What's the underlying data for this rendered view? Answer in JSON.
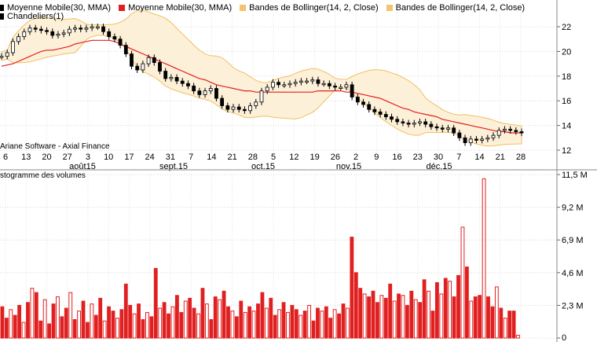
{
  "legend": [
    {
      "label": "Moyenne Mobile(30, MMA)",
      "color": "#000000",
      "partial": true
    },
    {
      "label": "Moyenne Mobile(30, MMA)",
      "color": "#e02020"
    },
    {
      "label": "Bandes de Bollinger(14, 2, Close)",
      "color": "#f2c46e"
    },
    {
      "label": "Bandes de Bollinger(14, 2, Close)",
      "color": "#f2c46e"
    },
    {
      "label": "Chandeliers(1)",
      "color": "#000000"
    }
  ],
  "credit": "Ariane Software - Axial Finance",
  "volume_title": "stogramme des volumes",
  "chart_data": [
    {
      "type": "candlestick",
      "x_day_ticks": [
        "6",
        "13",
        "20",
        "27",
        "3",
        "10",
        "17",
        "24",
        "31",
        "7",
        "14",
        "21",
        "28",
        "5",
        "12",
        "19",
        "26",
        "2",
        "9",
        "16",
        "23",
        "30",
        "7",
        "14",
        "21",
        "28"
      ],
      "x_month_ticks": [
        "août15",
        "sept.15",
        "oct.15",
        "nov.15",
        "déc.15"
      ],
      "yticks": [
        12,
        14,
        16,
        18,
        20,
        22
      ],
      "ylim": [
        11.5,
        23.0
      ],
      "close": [
        19.6,
        19.9,
        20.8,
        21.2,
        21.6,
        21.9,
        21.8,
        21.7,
        21.6,
        21.3,
        21.4,
        21.5,
        21.8,
        21.9,
        21.8,
        21.9,
        22.0,
        22.0,
        21.6,
        21.2,
        21.0,
        20.5,
        19.8,
        18.8,
        18.5,
        19.0,
        19.5,
        19.1,
        18.4,
        17.8,
        17.9,
        17.6,
        17.4,
        17.2,
        16.8,
        16.5,
        16.8,
        17.0,
        16.2,
        15.6,
        15.3,
        15.5,
        15.3,
        15.2,
        15.6,
        15.9,
        16.8,
        17.1,
        17.5,
        17.3,
        17.3,
        17.4,
        17.5,
        17.6,
        17.6,
        17.7,
        17.4,
        17.4,
        17.2,
        17.1,
        17.1,
        17.3,
        16.3,
        15.9,
        15.7,
        15.3,
        15.1,
        14.9,
        14.7,
        14.5,
        14.3,
        14.2,
        14.1,
        14.2,
        14.3,
        14.1,
        13.9,
        13.8,
        13.7,
        13.8,
        13.4,
        13.0,
        12.6,
        12.9,
        12.8,
        12.9,
        13.0,
        13.2,
        13.6,
        13.7,
        13.6,
        13.5,
        13.4
      ],
      "ma30": [
        18.8,
        18.9,
        19.0,
        19.2,
        19.4,
        19.6,
        19.8,
        20.0,
        20.1,
        20.1,
        20.2,
        20.3,
        20.4,
        20.6,
        20.7,
        20.8,
        20.9,
        20.9,
        20.9,
        20.9,
        20.8,
        20.6,
        20.4,
        20.2,
        20.0,
        19.8,
        19.6,
        19.4,
        19.2,
        19.0,
        18.8,
        18.6,
        18.4,
        18.2,
        18.0,
        17.8,
        17.7,
        17.5,
        17.3,
        17.2,
        17.1,
        17.0,
        16.9,
        16.8,
        16.8,
        16.7,
        16.7,
        16.7,
        16.7,
        16.7,
        16.7,
        16.7,
        16.7,
        16.7,
        16.7,
        16.7,
        16.8,
        16.8,
        16.8,
        16.8,
        16.8,
        16.7,
        16.7,
        16.6,
        16.5,
        16.4,
        16.3,
        16.2,
        16.0,
        15.8,
        15.6,
        15.4,
        15.3,
        15.1,
        15.0,
        14.9,
        14.8,
        14.7,
        14.5,
        14.4,
        14.3,
        14.2,
        14.1,
        14.0,
        13.9,
        13.8,
        13.7,
        13.6,
        13.5,
        13.5,
        13.4,
        13.4,
        13.4
      ]
    },
    {
      "type": "bar",
      "yticks": [
        "0",
        "2,3 M",
        "4,6 M",
        "6,9 M",
        "9,2 M",
        "11,5 M"
      ],
      "ytick_values": [
        0,
        2.3,
        4.6,
        6.9,
        9.2,
        11.5
      ],
      "ylim": [
        0,
        11.5
      ],
      "values": [
        2.2,
        1.4,
        2.0,
        1.6,
        2.3,
        1.1,
        2.5,
        3.5,
        3.2,
        1.2,
        2.7,
        1.0,
        2.4,
        2.9,
        1.5,
        2.1,
        3.2,
        1.3,
        1.9,
        2.6,
        1.1,
        2.4,
        1.6,
        2.8,
        1.2,
        2.2,
        1.9,
        1.4,
        2.0,
        3.8,
        2.3,
        1.7,
        2.4,
        1.3,
        1.8,
        1.5,
        4.9,
        2.1,
        2.5,
        1.7,
        2.2,
        3.0,
        1.8,
        2.6,
        2.8,
        2.1,
        1.7,
        3.5,
        2.4,
        1.3,
        2.9,
        2.7,
        3.3,
        2.2,
        1.9,
        1.5,
        2.6,
        1.8,
        2.2,
        1.9,
        2.4,
        3.2,
        2.1,
        2.8,
        1.6,
        2.0,
        2.5,
        1.8,
        2.3,
        2.0,
        1.6,
        1.9,
        2.3,
        1.2,
        2.1,
        1.9,
        2.2,
        1.4,
        2.0,
        1.7,
        2.4,
        2.1,
        7.1,
        4.6,
        3.5,
        3.1,
        2.9,
        3.3,
        2.5,
        3.0,
        2.8,
        3.8,
        2.6,
        3.1,
        3.0,
        2.3,
        3.3,
        2.7,
        2.5,
        4.1,
        3.3,
        1.9,
        3.9,
        3.1,
        4.2,
        4.0,
        2.9,
        4.4,
        7.8,
        5.0,
        2.6,
        2.9,
        3.0,
        11.2,
        2.9,
        2.2,
        3.6,
        2.1,
        1.4,
        1.9,
        1.9,
        0.2
      ],
      "hollow": [
        false,
        false,
        true,
        false,
        false,
        true,
        false,
        true,
        false,
        false,
        true,
        false,
        false,
        true,
        false,
        false,
        true,
        false,
        true,
        false,
        false,
        true,
        false,
        false,
        true,
        false,
        false,
        true,
        false,
        false,
        false,
        true,
        false,
        false,
        true,
        false,
        false,
        true,
        false,
        false,
        true,
        false,
        false,
        true,
        false,
        false,
        true,
        false,
        true,
        false,
        false,
        true,
        false,
        false,
        true,
        false,
        false,
        true,
        false,
        true,
        false,
        false,
        true,
        false,
        false,
        true,
        false,
        true,
        false,
        false,
        true,
        false,
        true,
        false,
        false,
        true,
        false,
        false,
        true,
        false,
        false,
        true,
        false,
        false,
        false,
        true,
        false,
        false,
        false,
        true,
        false,
        false,
        true,
        false,
        true,
        false,
        false,
        true,
        false,
        false,
        true,
        false,
        false,
        true,
        false,
        true,
        false,
        false,
        true,
        false,
        true,
        false,
        false,
        true,
        false,
        false,
        true,
        false,
        true,
        false,
        false,
        true,
        false,
        false
      ]
    }
  ]
}
